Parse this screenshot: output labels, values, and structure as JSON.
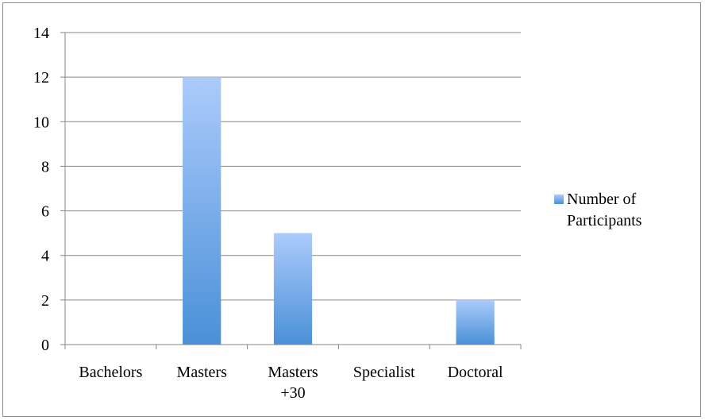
{
  "chart_data": {
    "type": "bar",
    "title": "",
    "xlabel": "",
    "ylabel": "",
    "categories": [
      [
        "Bachelors"
      ],
      [
        "Masters"
      ],
      [
        "Masters",
        "+30"
      ],
      [
        "Specialist"
      ],
      [
        "Doctoral"
      ]
    ],
    "series": [
      {
        "name": "Number of Participants",
        "name_lines": [
          "Number of",
          "Participants"
        ],
        "values": [
          0,
          12,
          5,
          0,
          2
        ]
      }
    ],
    "ylim": [
      0,
      14
    ],
    "yticks": [
      "0",
      "2",
      "4",
      "6",
      "8",
      "10",
      "12",
      "14"
    ],
    "grid": true,
    "legend": "right",
    "colors": {
      "bar_top": "#abcbfb",
      "bar_bottom": "#4a90d8",
      "grid": "#868686",
      "axis": "#868686"
    }
  }
}
